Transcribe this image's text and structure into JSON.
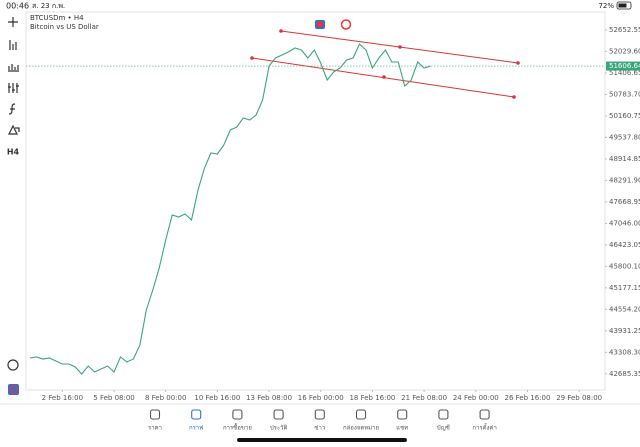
{
  "status_bar": {
    "time": "00:46",
    "date": "ส. 23 ก.พ.",
    "battery": "72%"
  },
  "toolbar": {
    "timeframe": "H4"
  },
  "chart_data": {
    "type": "line",
    "title": "BTCUSDm • H4",
    "subtitle": "Bitcoin vs US Dollar",
    "color": "#3aa57a",
    "x": [
      0,
      8,
      16,
      24,
      32,
      40,
      48,
      56,
      64,
      72,
      80,
      88,
      96,
      104,
      112,
      120,
      128,
      136,
      144,
      152,
      160,
      168,
      176,
      184,
      192,
      200,
      208,
      216,
      224,
      232,
      240,
      248,
      256,
      264,
      272,
      280,
      288,
      296,
      304,
      312,
      320,
      328,
      336,
      344,
      352,
      360,
      368,
      376,
      384,
      392,
      400,
      408,
      416,
      424,
      432,
      440,
      448,
      456,
      464,
      472,
      480,
      488,
      496
    ],
    "values": [
      43144,
      43173,
      43115,
      43144,
      43057,
      42970,
      42970,
      42883,
      42680,
      42912,
      42738,
      42825,
      42912,
      42738,
      43173,
      43028,
      43115,
      43521,
      44535,
      45115,
      45753,
      46565,
      47289,
      47231,
      47318,
      47144,
      48014,
      48652,
      49087,
      49058,
      49319,
      49754,
      49841,
      50101,
      50043,
      50188,
      50623,
      51609,
      51841,
      51928,
      52015,
      52131,
      52073,
      51841,
      52073,
      51696,
      51203,
      51435,
      51551,
      51783,
      51841,
      52247,
      52073,
      51551,
      51841,
      52073,
      51725,
      51725,
      51029,
      51203,
      51725,
      51551,
      51606.64
    ],
    "xlim": [
      -5,
      712
    ],
    "xticks": [
      {
        "value": 40,
        "label": "2 Feb 16:00"
      },
      {
        "value": 104,
        "label": "5 Feb 08:00"
      },
      {
        "value": 168,
        "label": "8 Feb 00:00"
      },
      {
        "value": 232,
        "label": "10 Feb 16:00"
      },
      {
        "value": 296,
        "label": "13 Feb 08:00"
      },
      {
        "value": 360,
        "label": "16 Feb 00:00"
      },
      {
        "value": 424,
        "label": "18 Feb 16:00"
      },
      {
        "value": 488,
        "label": "21 Feb 08:00"
      },
      {
        "value": 552,
        "label": "24 Feb 00:00"
      },
      {
        "value": 616,
        "label": "26 Feb 16:00"
      },
      {
        "value": 680,
        "label": "29 Feb 08:00"
      }
    ],
    "ylim": [
      42216,
      53174
    ],
    "yticks": [
      52652.55,
      {
        "value": 52029.6,
        "label": "52029.60"
      },
      51406.65,
      {
        "value": 50783.7,
        "label": "50783.70"
      },
      50160.75,
      {
        "value": 49537.8,
        "label": "49537.80"
      },
      48914.85,
      {
        "value": 48291.9,
        "label": "48291.90"
      },
      47668.95,
      {
        "value": 47046,
        "label": "47046.00"
      },
      46423.05,
      {
        "value": 45800.1,
        "label": "45800.10"
      },
      45177.15,
      {
        "value": 44554.2,
        "label": "44554.20"
      },
      43931.25,
      {
        "value": 43308.3,
        "label": "43308.30"
      },
      42685.35
    ],
    "current_price": 51606.64,
    "current_price_color": "#3aa57a"
  },
  "nav": {
    "items": [
      "ราคา",
      "กราฟ",
      "การซื้อขาย",
      "ประวัติ",
      "ข่าว",
      "กล่องจดหมาย",
      "แชท",
      "บัญชี",
      "การตั้งค่า"
    ],
    "active": 1,
    "active_color": "#2f6fd6"
  }
}
